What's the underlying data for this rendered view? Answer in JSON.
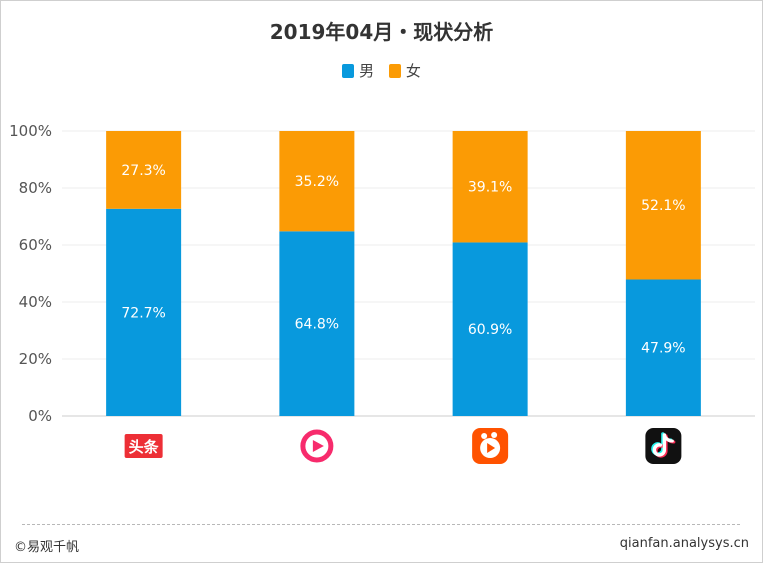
{
  "chart_data": {
    "type": "bar",
    "stacked": true,
    "title": "2019年04月・现状分析",
    "categories": [
      "toutiao-logo",
      "weishi-logo",
      "kuaishou-logo",
      "douyin-logo"
    ],
    "category_labels": [
      "头条",
      "",
      "",
      ""
    ],
    "series": [
      {
        "name": "男",
        "color": "#0899dd",
        "values": [
          72.7,
          64.8,
          60.9,
          47.9
        ],
        "labels": [
          "72.7%",
          "64.8%",
          "60.9%",
          "47.9%"
        ]
      },
      {
        "name": "女",
        "color": "#fb9b05",
        "values": [
          27.3,
          35.2,
          39.1,
          52.1
        ],
        "labels": [
          "27.3%",
          "35.2%",
          "39.1%",
          "52.1%"
        ]
      }
    ],
    "ylim": [
      0,
      100
    ],
    "yticks": [
      "0%",
      "20%",
      "40%",
      "60%",
      "80%",
      "100%"
    ],
    "legend_position": "top-center",
    "grid": true
  },
  "footer": {
    "copyright": "©易观千帆",
    "site": "qianfan.analysys.cn"
  }
}
